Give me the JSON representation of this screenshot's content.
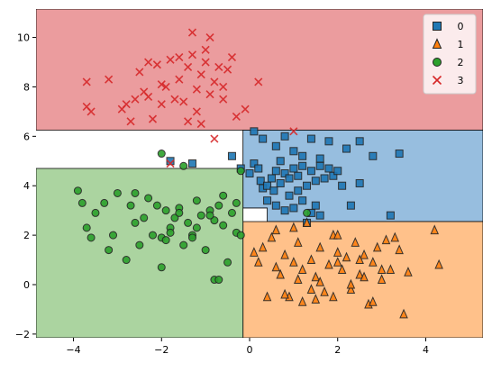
{
  "chart_data": {
    "type": "scatter",
    "title": "",
    "xlabel": "",
    "ylabel": "",
    "xlim": [
      -4.85,
      5.3
    ],
    "ylim": [
      -2.15,
      11.15
    ],
    "xticks": [
      -4,
      -2,
      0,
      2,
      4
    ],
    "yticks": [
      -2,
      0,
      2,
      4,
      6,
      8,
      10
    ],
    "xtick_labels": [
      "−4",
      "−2",
      "0",
      "2",
      "4"
    ],
    "ytick_labels": [
      "−2",
      "0",
      "2",
      "4",
      "6",
      "8",
      "10"
    ],
    "grid": false,
    "legend_position": "top-right",
    "legend": [
      {
        "label": "0",
        "marker": "square",
        "color": "#1f77b4"
      },
      {
        "label": "1",
        "marker": "triangle",
        "color": "#ff7f0e"
      },
      {
        "label": "2",
        "marker": "circle",
        "color": "#2ca02c"
      },
      {
        "label": "3",
        "marker": "x",
        "color": "#d62728"
      }
    ],
    "regions": [
      {
        "class": "3",
        "color": "#eb9c9e",
        "polygon": [
          [
            -4.85,
            11.15
          ],
          [
            5.3,
            11.15
          ],
          [
            5.3,
            6.25
          ],
          [
            -4.85,
            6.25
          ]
        ]
      },
      {
        "class": "0",
        "color": "#97bedf",
        "polygon": [
          [
            -0.15,
            6.25
          ],
          [
            5.3,
            6.25
          ],
          [
            5.3,
            2.55
          ],
          [
            0.4,
            2.55
          ],
          [
            0.4,
            3.1
          ],
          [
            -0.15,
            3.1
          ]
        ]
      },
      {
        "class": "1",
        "color": "#ffc18a",
        "polygon": [
          [
            -0.15,
            2.55
          ],
          [
            5.3,
            2.55
          ],
          [
            5.3,
            -2.15
          ],
          [
            -0.15,
            -2.15
          ]
        ]
      },
      {
        "class": "2",
        "color": "#abd4a0",
        "polygon": [
          [
            -4.85,
            4.7
          ],
          [
            -0.15,
            4.7
          ],
          [
            -0.15,
            -2.15
          ],
          [
            -4.85,
            -2.15
          ]
        ]
      }
    ],
    "series": [
      {
        "name": "0",
        "marker": "square",
        "color": "#1f77b4",
        "points": [
          [
            -1.8,
            5.0
          ],
          [
            -1.3,
            4.9
          ],
          [
            -0.4,
            5.2
          ],
          [
            -0.2,
            4.7
          ],
          [
            0.0,
            4.5
          ],
          [
            0.1,
            4.9
          ],
          [
            0.2,
            4.7
          ],
          [
            0.25,
            4.2
          ],
          [
            0.3,
            3.9
          ],
          [
            0.4,
            4.0
          ],
          [
            0.5,
            4.3
          ],
          [
            0.55,
            3.8
          ],
          [
            0.6,
            4.6
          ],
          [
            0.7,
            5.0
          ],
          [
            0.8,
            4.5
          ],
          [
            0.9,
            4.3
          ],
          [
            1.0,
            4.7
          ],
          [
            1.1,
            4.4
          ],
          [
            1.2,
            4.8
          ],
          [
            1.3,
            4.0
          ],
          [
            1.4,
            4.6
          ],
          [
            1.5,
            4.2
          ],
          [
            1.6,
            4.8
          ],
          [
            1.7,
            4.3
          ],
          [
            1.8,
            4.7
          ],
          [
            1.9,
            4.4
          ],
          [
            2.0,
            4.6
          ],
          [
            0.1,
            6.2
          ],
          [
            0.3,
            5.9
          ],
          [
            0.6,
            5.6
          ],
          [
            0.8,
            6.0
          ],
          [
            1.0,
            5.4
          ],
          [
            1.2,
            5.2
          ],
          [
            1.4,
            5.9
          ],
          [
            1.6,
            5.1
          ],
          [
            1.8,
            5.8
          ],
          [
            2.2,
            5.5
          ],
          [
            2.5,
            5.8
          ],
          [
            2.8,
            5.2
          ],
          [
            3.4,
            5.3
          ],
          [
            0.4,
            3.4
          ],
          [
            0.6,
            3.2
          ],
          [
            0.8,
            3.0
          ],
          [
            1.0,
            3.1
          ],
          [
            1.2,
            3.4
          ],
          [
            1.4,
            2.9
          ],
          [
            1.5,
            3.2
          ],
          [
            1.3,
            2.5
          ],
          [
            1.6,
            2.8
          ],
          [
            2.3,
            3.2
          ],
          [
            2.5,
            4.1
          ],
          [
            3.2,
            2.8
          ],
          [
            0.9,
            3.6
          ],
          [
            0.7,
            4.1
          ],
          [
            1.1,
            3.8
          ],
          [
            2.1,
            4.0
          ]
        ]
      },
      {
        "name": "1",
        "marker": "triangle",
        "color": "#ff7f0e",
        "points": [
          [
            0.1,
            1.3
          ],
          [
            0.2,
            0.9
          ],
          [
            0.3,
            1.5
          ],
          [
            0.5,
            1.9
          ],
          [
            0.6,
            0.7
          ],
          [
            0.7,
            0.4
          ],
          [
            0.8,
            1.2
          ],
          [
            0.9,
            -0.5
          ],
          [
            1.0,
            0.9
          ],
          [
            1.1,
            1.7
          ],
          [
            1.2,
            0.6
          ],
          [
            1.3,
            2.5
          ],
          [
            1.4,
            1.0
          ],
          [
            1.5,
            0.3
          ],
          [
            1.6,
            1.5
          ],
          [
            1.7,
            -0.3
          ],
          [
            1.8,
            0.8
          ],
          [
            1.9,
            2.0
          ],
          [
            2.0,
            1.3
          ],
          [
            2.1,
            0.6
          ],
          [
            2.2,
            1.1
          ],
          [
            2.3,
            -0.2
          ],
          [
            2.4,
            1.7
          ],
          [
            2.5,
            0.4
          ],
          [
            2.6,
            1.2
          ],
          [
            2.7,
            -0.8
          ],
          [
            2.8,
            0.9
          ],
          [
            2.9,
            1.5
          ],
          [
            3.0,
            0.2
          ],
          [
            3.1,
            1.8
          ],
          [
            3.2,
            0.6
          ],
          [
            3.3,
            1.9
          ],
          [
            3.5,
            -1.2
          ],
          [
            3.6,
            0.5
          ],
          [
            4.2,
            2.2
          ],
          [
            4.3,
            0.8
          ],
          [
            0.4,
            -0.5
          ],
          [
            0.8,
            -0.4
          ],
          [
            1.2,
            -0.7
          ],
          [
            1.5,
            -0.6
          ],
          [
            1.9,
            -0.5
          ],
          [
            2.3,
            0.0
          ],
          [
            2.6,
            0.3
          ],
          [
            2.8,
            -0.7
          ],
          [
            3.0,
            0.6
          ],
          [
            1.1,
            0.2
          ],
          [
            1.4,
            -0.2
          ],
          [
            2.0,
            0.9
          ],
          [
            3.4,
            1.4
          ],
          [
            0.6,
            2.2
          ],
          [
            1.0,
            2.3
          ],
          [
            2.0,
            2.0
          ],
          [
            1.6,
            0.1
          ],
          [
            2.5,
            1.0
          ]
        ]
      },
      {
        "name": "2",
        "marker": "circle",
        "color": "#2ca02c",
        "points": [
          [
            -3.9,
            3.8
          ],
          [
            -3.8,
            3.3
          ],
          [
            -3.7,
            2.3
          ],
          [
            -3.6,
            1.9
          ],
          [
            -3.5,
            2.9
          ],
          [
            -3.3,
            3.3
          ],
          [
            -3.2,
            1.4
          ],
          [
            -3.1,
            2.0
          ],
          [
            -3.0,
            3.7
          ],
          [
            -2.8,
            1.0
          ],
          [
            -2.7,
            3.2
          ],
          [
            -2.6,
            2.5
          ],
          [
            -2.5,
            1.6
          ],
          [
            -2.4,
            2.7
          ],
          [
            -2.3,
            3.5
          ],
          [
            -2.2,
            2.0
          ],
          [
            -2.1,
            3.2
          ],
          [
            -2.0,
            1.9
          ],
          [
            -1.9,
            3.0
          ],
          [
            -1.8,
            2.3
          ],
          [
            -1.7,
            2.7
          ],
          [
            -1.6,
            3.1
          ],
          [
            -1.5,
            1.6
          ],
          [
            -1.4,
            2.5
          ],
          [
            -1.3,
            2.0
          ],
          [
            -1.2,
            3.4
          ],
          [
            -1.1,
            2.8
          ],
          [
            -1.0,
            1.4
          ],
          [
            -0.9,
            3.0
          ],
          [
            -0.8,
            2.6
          ],
          [
            -0.7,
            3.2
          ],
          [
            -0.6,
            2.4
          ],
          [
            -0.5,
            0.9
          ],
          [
            -0.4,
            2.9
          ],
          [
            -0.3,
            2.1
          ],
          [
            -2.6,
            3.7
          ],
          [
            -2.0,
            0.7
          ],
          [
            -2.0,
            5.3
          ],
          [
            -1.5,
            4.8
          ],
          [
            -0.8,
            0.2
          ],
          [
            -0.7,
            0.2
          ],
          [
            -0.2,
            4.6
          ],
          [
            -0.2,
            2.0
          ],
          [
            -1.9,
            1.8
          ],
          [
            -1.6,
            2.9
          ],
          [
            -1.2,
            2.3
          ],
          [
            -0.9,
            2.8
          ],
          [
            -0.3,
            3.3
          ],
          [
            -1.8,
            2.1
          ],
          [
            -1.3,
            1.9
          ],
          [
            -0.6,
            3.6
          ],
          [
            1.3,
            2.9
          ]
        ]
      },
      {
        "name": "3",
        "marker": "x",
        "color": "#d62728",
        "points": [
          [
            -3.7,
            7.2
          ],
          [
            -3.6,
            7.0
          ],
          [
            -3.2,
            8.3
          ],
          [
            -2.9,
            7.1
          ],
          [
            -2.7,
            6.6
          ],
          [
            -2.6,
            7.5
          ],
          [
            -2.5,
            8.6
          ],
          [
            -2.4,
            7.8
          ],
          [
            -2.3,
            9.0
          ],
          [
            -2.2,
            6.7
          ],
          [
            -2.1,
            8.9
          ],
          [
            -2.0,
            7.3
          ],
          [
            -1.9,
            8.0
          ],
          [
            -1.8,
            9.1
          ],
          [
            -1.7,
            7.5
          ],
          [
            -1.6,
            8.3
          ],
          [
            -1.5,
            7.4
          ],
          [
            -1.4,
            8.8
          ],
          [
            -1.3,
            9.3
          ],
          [
            -1.2,
            7.9
          ],
          [
            -1.1,
            8.5
          ],
          [
            -1.0,
            9.0
          ],
          [
            -0.9,
            7.7
          ],
          [
            -0.8,
            8.2
          ],
          [
            -0.7,
            8.8
          ],
          [
            -0.6,
            7.5
          ],
          [
            -0.5,
            8.7
          ],
          [
            -0.4,
            9.2
          ],
          [
            -0.3,
            6.8
          ],
          [
            -0.1,
            7.1
          ],
          [
            0.2,
            8.2
          ],
          [
            -1.3,
            10.2
          ],
          [
            -0.9,
            10.0
          ],
          [
            -1.0,
            9.5
          ],
          [
            -1.4,
            6.6
          ],
          [
            -1.1,
            6.5
          ],
          [
            -0.8,
            5.9
          ],
          [
            -1.8,
            4.9
          ],
          [
            -3.7,
            8.2
          ],
          [
            -2.8,
            7.3
          ],
          [
            -2.0,
            8.1
          ],
          [
            -1.6,
            9.2
          ],
          [
            -1.2,
            7.0
          ],
          [
            -0.6,
            8.0
          ],
          [
            1.0,
            6.2
          ],
          [
            -2.3,
            7.6
          ]
        ]
      }
    ]
  }
}
